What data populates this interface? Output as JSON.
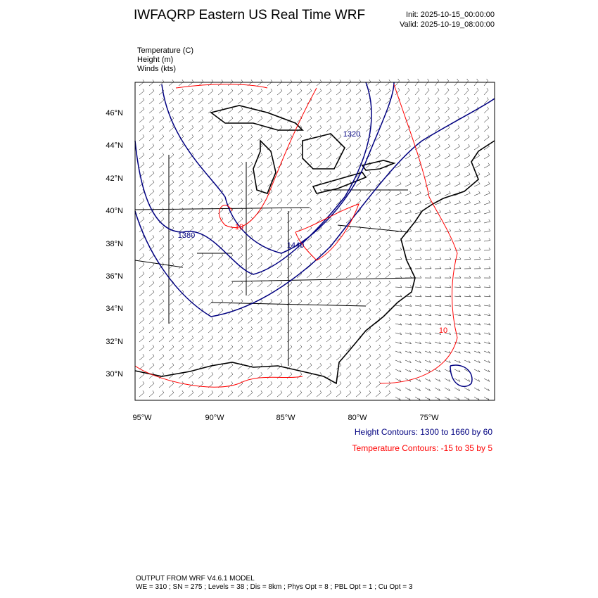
{
  "header": {
    "title": "IWFAQRP Eastern US Real Time WRF",
    "init": "Init: 2025-10-15_00:00:00",
    "valid": "Valid: 2025-10-19_08:00:00"
  },
  "fields": [
    "Temperature   (C)",
    "Height   (m)",
    "Winds   (kts)"
  ],
  "map": {
    "lat_labels": [
      "46°N",
      "44°N",
      "42°N",
      "40°N",
      "38°N",
      "36°N",
      "34°N",
      "32°N",
      "30°N"
    ],
    "lon_labels": [
      "95°W",
      "90°W",
      "85°W",
      "80°W",
      "75°W"
    ],
    "contour_labels": {
      "height": [
        "1320",
        "1380",
        "1440"
      ],
      "temperature": [
        "10",
        "10"
      ]
    }
  },
  "legend": {
    "height": "Height Contours: 1300 to 1660 by 60",
    "temperature": "Temperature Contours: -15 to 35 by 5"
  },
  "footer": {
    "line1": "OUTPUT FROM WRF V4.6.1 MODEL",
    "line2": "WE = 310 ; SN = 275 ; Levels = 38 ; Dis = 8km ; Phys Opt = 8 ; PBL Opt = 1 ; Cu Opt = 3"
  }
}
